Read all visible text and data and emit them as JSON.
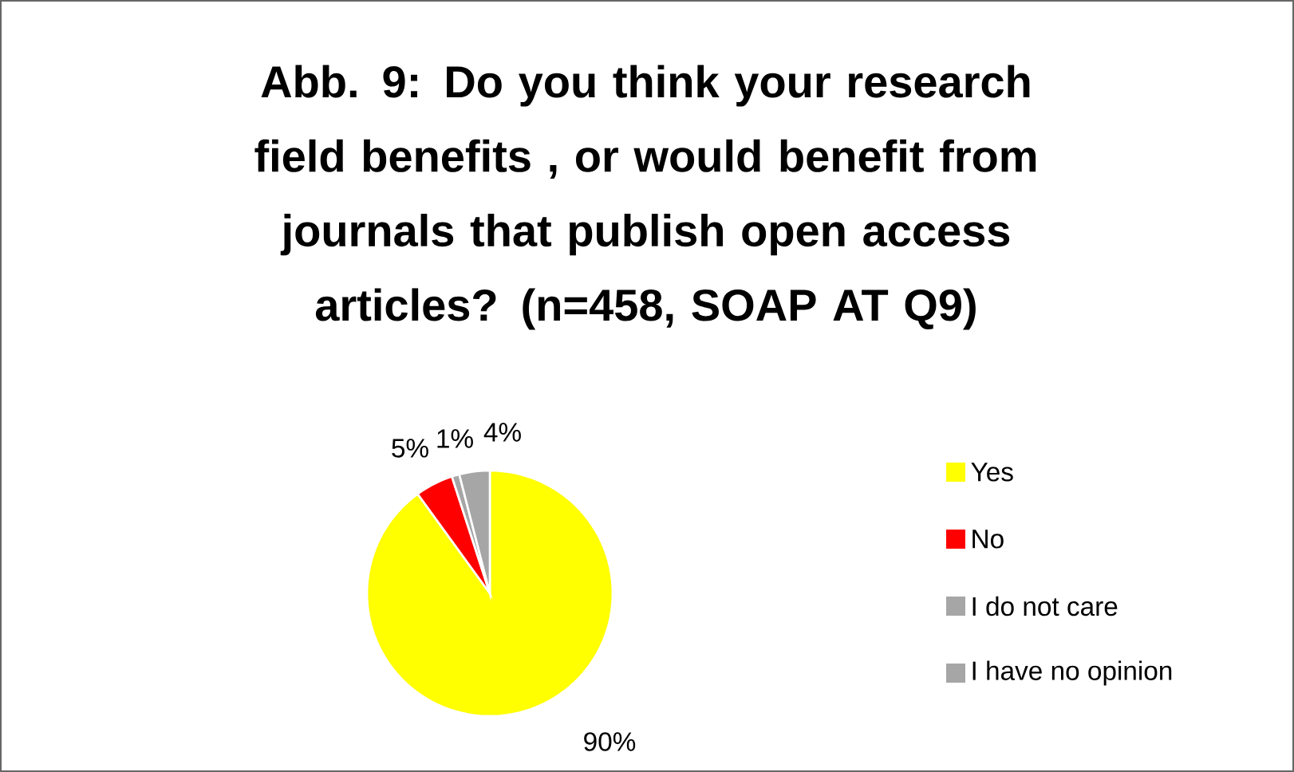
{
  "chart_data": {
    "type": "pie",
    "title": "Abb. 9: Do you think your research field benefits , or would benefit from journals that publish open access articles? (n=458, SOAP AT Q9)",
    "categories": [
      "Yes",
      "No",
      "I do not care",
      "I have no opinion"
    ],
    "values": [
      90,
      5,
      1,
      4
    ],
    "value_labels": [
      "90%",
      "5%",
      "1%",
      "4%"
    ],
    "colors": [
      "#ffff00",
      "#ff0000",
      "#a6a6a6",
      "#a6a6a6"
    ],
    "legend": "right"
  }
}
